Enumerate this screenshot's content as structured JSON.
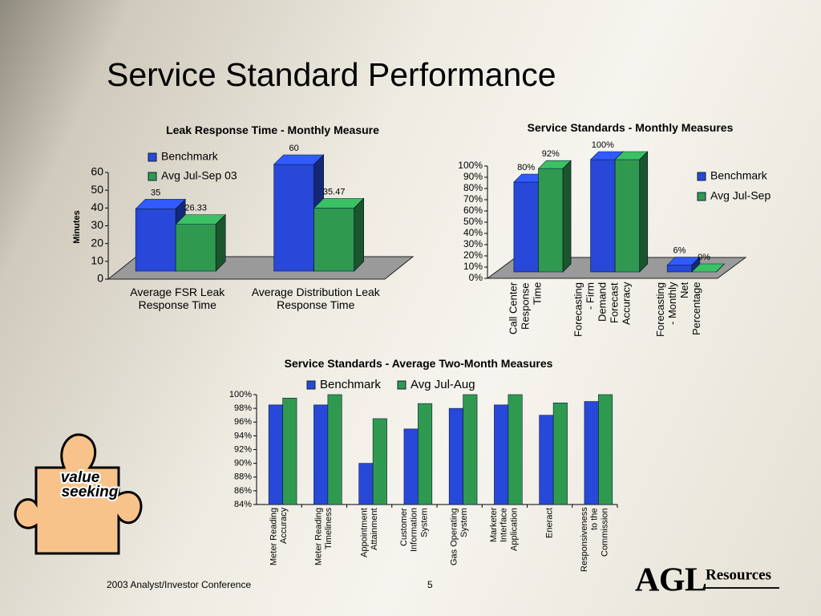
{
  "title": "Service Standard Performance",
  "footer": "2003 Analyst/Investor Conference",
  "page_number": 5,
  "logo": "AGL",
  "logo_sub": "Resources",
  "badge": [
    "value",
    "seeking"
  ],
  "chart_data": [
    {
      "type": "bar",
      "three_d": true,
      "title": "Leak Response Time - Monthly Measure",
      "ylabel": "Minutes",
      "categories": [
        "Average FSR Leak Response Time",
        "Average Distribution Leak Response Time"
      ],
      "series": [
        {
          "name": "Benchmark",
          "color": "#2748d8",
          "values": [
            35,
            60
          ]
        },
        {
          "name": "Avg Jul-Sep 03",
          "color": "#2f9a4f",
          "values": [
            26.33,
            35.47
          ]
        }
      ],
      "ylim": [
        0,
        60
      ],
      "yticks": [
        0,
        10,
        20,
        30,
        40,
        50,
        60
      ]
    },
    {
      "type": "bar",
      "three_d": true,
      "title": "Service Standards - Monthly Measures",
      "categories": [
        "Call Center Response Time",
        "Forecasting - Firm Demand Forecast Accuracy",
        "Forecasting - Monthly Net Percentage"
      ],
      "series": [
        {
          "name": "Benchmark",
          "color": "#2748d8",
          "values": [
            80,
            100,
            6
          ],
          "value_labels": [
            "80%",
            "100%",
            "6%"
          ]
        },
        {
          "name": "Avg Jul-Sep",
          "color": "#2f9a4f",
          "values": [
            92,
            100,
            0
          ],
          "value_labels": [
            "92%",
            null,
            "0%"
          ]
        }
      ],
      "ylim": [
        0,
        100
      ],
      "yticks": [
        {
          "value": 0,
          "label": "0%"
        },
        {
          "value": 10,
          "label": "10%"
        },
        {
          "value": 20,
          "label": "20%"
        },
        {
          "value": 30,
          "label": "30%"
        },
        {
          "value": 40,
          "label": "40%"
        },
        {
          "value": 50,
          "label": "50%"
        },
        {
          "value": 60,
          "label": "60%"
        },
        {
          "value": 70,
          "label": "70%"
        },
        {
          "value": 80,
          "label": "80%"
        },
        {
          "value": 90,
          "label": "90%"
        },
        {
          "value": 100,
          "label": "100%"
        }
      ]
    },
    {
      "type": "bar",
      "three_d": false,
      "title": "Service Standards - Average Two-Month Measures",
      "categories": [
        "Meter Reading Accuracy",
        "Meter Reading Timeliness",
        "Appointment Attainment",
        "Customer Information System",
        "Gas Operating System",
        "Marketer Interface Application",
        "Eneract",
        "Responsiveness to the Commission"
      ],
      "series": [
        {
          "name": "Benchmark",
          "color": "#2748d8",
          "values": [
            98.5,
            98.5,
            90,
            95,
            98,
            98.5,
            97,
            99
          ]
        },
        {
          "name": "Avg Jul-Aug",
          "color": "#2f9a4f",
          "values": [
            99.5,
            100,
            96.5,
            98.7,
            100,
            100,
            98.8,
            100
          ]
        }
      ],
      "ylim": [
        84,
        100
      ],
      "yticks": [
        {
          "value": 84,
          "label": "84%"
        },
        {
          "value": 86,
          "label": "86%"
        },
        {
          "value": 88,
          "label": "88%"
        },
        {
          "value": 90,
          "label": "90%"
        },
        {
          "value": 92,
          "label": "92%"
        },
        {
          "value": 94,
          "label": "94%"
        },
        {
          "value": 96,
          "label": "96%"
        },
        {
          "value": 98,
          "label": "98%"
        },
        {
          "value": 100,
          "label": "100%"
        }
      ]
    }
  ]
}
